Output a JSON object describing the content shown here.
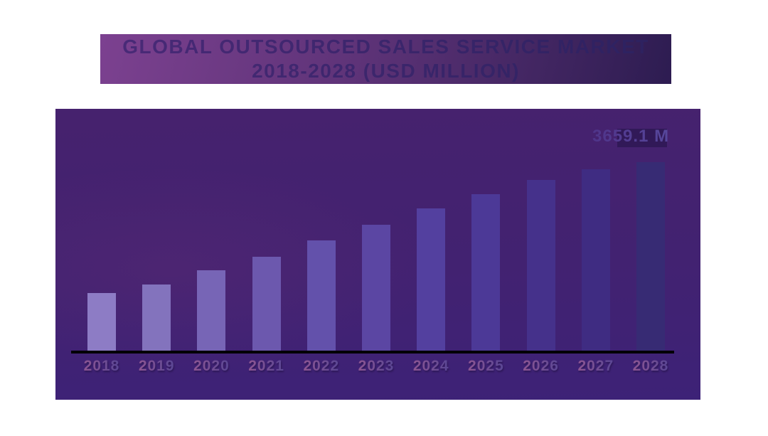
{
  "title": {
    "line1": "GLOBAL OUTSOURCED SALES SERVICE MARKET",
    "line2": "2018-2028 (USD MILLION)"
  },
  "colors": {
    "banner_gradient": [
      "#7c4190",
      "#5e3378",
      "#2d1c51"
    ],
    "title_text_gradient": [
      "#4a2a78",
      "#2c215f"
    ],
    "panel_gradient": [
      "#46226e",
      "#422271",
      "#3d2277"
    ],
    "axis": "#000000",
    "bar_colors": [
      "#8d7cc5",
      "#8373bd",
      "#7765b6",
      "#6c58ae",
      "#6351ab",
      "#5b46a3",
      "#53409f",
      "#4c3997",
      "#45318b",
      "#3f2c82",
      "#372b74"
    ],
    "year_label_gradient": [
      "#9a5a92",
      "#4c4294"
    ],
    "peak_label_gradient": [
      "#4f3489",
      "#5f5cb0"
    ],
    "peak_band": "rgba(30,15,65,0.5)"
  },
  "chart_data": {
    "type": "bar",
    "title": "GLOBAL OUTSOURCED SALES SERVICE MARKET 2018-2028 (USD MILLION)",
    "unit": "USD Million",
    "categories": [
      "2018",
      "2019",
      "2020",
      "2021",
      "2022",
      "2023",
      "2024",
      "2025",
      "2026",
      "2027",
      "2028"
    ],
    "values": [
      1120,
      1285,
      1560,
      1825,
      2140,
      2445,
      2760,
      3040,
      3315,
      3520,
      3659.1
    ],
    "peak_label": "3659.1 M",
    "value_labels": {
      "2028": "3659.1 M"
    },
    "xlabel": "",
    "ylabel": "",
    "ylim": [
      0,
      3700
    ],
    "grid": false,
    "legend": false
  }
}
